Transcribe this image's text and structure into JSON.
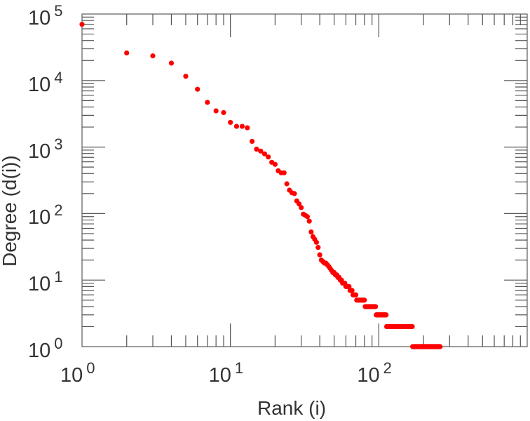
{
  "chart_data": {
    "type": "scatter",
    "title": "",
    "xlabel": "Rank (i)",
    "ylabel": "Degree (d(i))",
    "xscale": "log",
    "yscale": "log",
    "xlim": [
      1,
      1000
    ],
    "ylim": [
      1,
      100000
    ],
    "grid": false,
    "marker_color": "#ff0000",
    "x_ticks": [
      {
        "base": "10",
        "exp": "0"
      },
      {
        "base": "10",
        "exp": "1"
      },
      {
        "base": "10",
        "exp": "2"
      }
    ],
    "y_ticks": [
      {
        "base": "10",
        "exp": "0"
      },
      {
        "base": "10",
        "exp": "1"
      },
      {
        "base": "10",
        "exp": "2"
      },
      {
        "base": "10",
        "exp": "3"
      },
      {
        "base": "10",
        "exp": "4"
      },
      {
        "base": "10",
        "exp": "5"
      }
    ],
    "degrees_by_rank": [
      70000,
      26000,
      23500,
      18300,
      11600,
      7400,
      4700,
      3500,
      3300,
      2350,
      2050,
      2050,
      1950,
      1220,
      930,
      870,
      790,
      710,
      590,
      550,
      440,
      410,
      410,
      280,
      225,
      205,
      200,
      155,
      140,
      123,
      98,
      94,
      90,
      77,
      53,
      45,
      41,
      37,
      31,
      24,
      20,
      19,
      18,
      18,
      17,
      16,
      15,
      14,
      13,
      13,
      12,
      12,
      11,
      11,
      10,
      10,
      9,
      9,
      9,
      8,
      8,
      8,
      8,
      7,
      7,
      7,
      6,
      6,
      6,
      6
    ],
    "constant_runs": [
      {
        "degree": 5,
        "from_rank": 71,
        "to_rank": 80
      },
      {
        "degree": 4,
        "from_rank": 81,
        "to_rank": 95
      },
      {
        "degree": 3,
        "from_rank": 96,
        "to_rank": 112
      },
      {
        "degree": 2,
        "from_rank": 113,
        "to_rank": 168
      },
      {
        "degree": 1,
        "from_rank": 169,
        "to_rank": 259
      }
    ]
  }
}
